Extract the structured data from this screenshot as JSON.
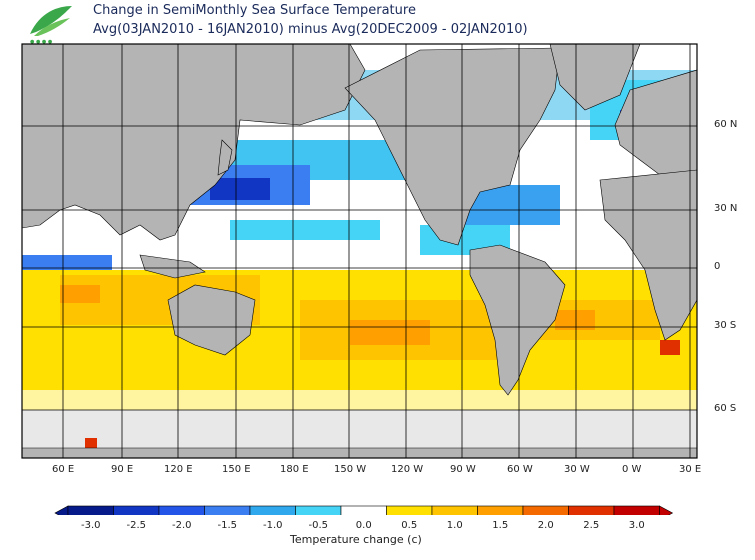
{
  "header": {
    "title_line1": "Change in SemiMonthly Sea Surface Temperature",
    "title_line2": "Avg(03JAN2010 - 16JAN2010) minus Avg(20DEC2009 - 02JAN2010)"
  },
  "map": {
    "lon_labels": [
      "60 E",
      "90 E",
      "120 E",
      "150 E",
      "180 E",
      "150 W",
      "120 W",
      "90 W",
      "60 W",
      "30 W",
      "0 W",
      "30 E"
    ],
    "lat_labels": [
      "60 N",
      "30 N",
      "0",
      "30 S",
      "60 S"
    ],
    "colors": {
      "land": "#b4b4b4",
      "ice": "#e0e0e0",
      "grid": "#000000"
    }
  },
  "colorbar": {
    "tick_labels": [
      "-3.0",
      "-2.5",
      "-2.0",
      "-1.5",
      "-1.0",
      "-0.5",
      "0.0",
      "0.5",
      "1.0",
      "1.5",
      "2.0",
      "2.5",
      "3.0"
    ],
    "bin_colors": [
      "#061a8a",
      "#1236c4",
      "#2355e8",
      "#3a7ef2",
      "#2fa8ee",
      "#46d4f6",
      "#ffffff",
      "#ffe000",
      "#ffc400",
      "#ffa000",
      "#f56a00",
      "#e03000",
      "#c20000"
    ],
    "title": "Temperature change  (c)"
  }
}
